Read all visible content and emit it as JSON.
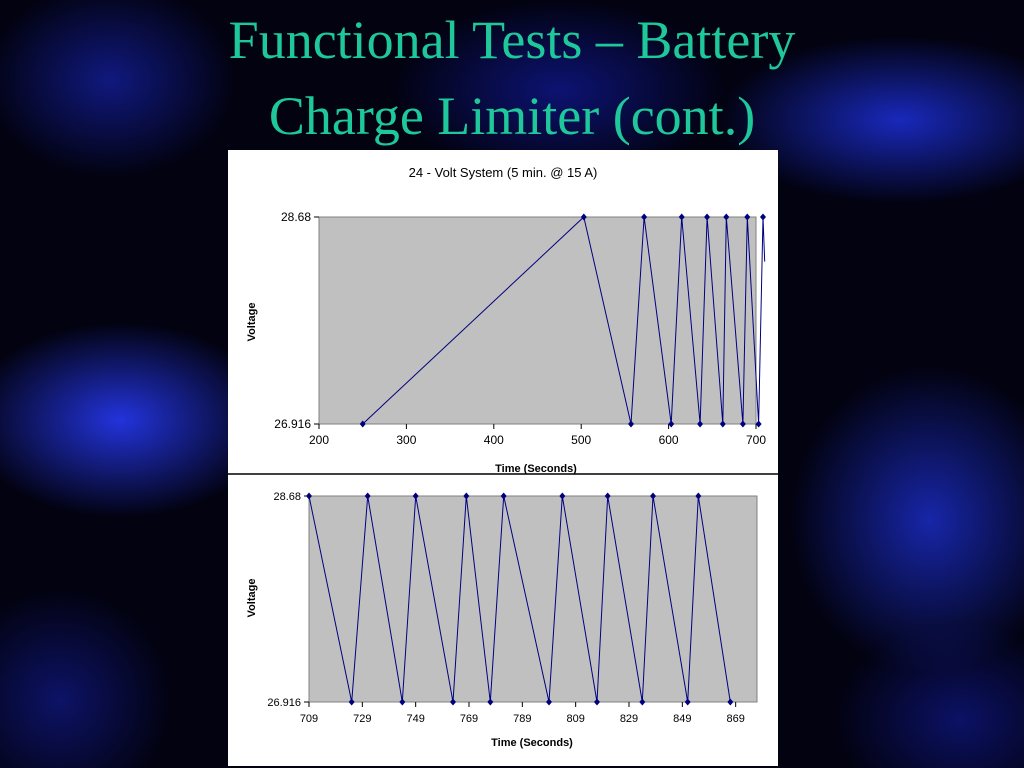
{
  "slide": {
    "title_line1": "Functional Tests – Battery",
    "title_line2": "Charge Limiter (cont.)",
    "title_color": "#1fc89a"
  },
  "chart_data": [
    {
      "type": "line",
      "title": "24 - Volt System (5 min. @ 15 A)",
      "xlabel": "Time (Seconds)",
      "ylabel": "Voltage",
      "xlim": [
        200,
        700
      ],
      "ylim": [
        26.916,
        28.68
      ],
      "xticks": [
        200,
        300,
        400,
        500,
        600,
        700
      ],
      "yticks": [
        26.916,
        28.68
      ],
      "ytick_labels": [
        "26.916",
        "28.68"
      ],
      "plot_background": "#c0c0c0",
      "line_color": "#00007f",
      "marker": "diamond",
      "series": [
        {
          "x": [
            250,
            503,
            557,
            572,
            603,
            615,
            636,
            644,
            662,
            666,
            685,
            690,
            703,
            708,
            710
          ],
          "y": [
            26.916,
            28.68,
            26.916,
            28.68,
            26.916,
            28.68,
            26.916,
            28.68,
            26.916,
            28.68,
            26.916,
            28.68,
            26.916,
            28.68,
            28.3
          ]
        }
      ]
    },
    {
      "type": "line",
      "title": "",
      "xlabel": "Time (Seconds)",
      "ylabel": "Voltage",
      "xlim": [
        709,
        877
      ],
      "ylim": [
        26.916,
        28.68
      ],
      "xticks": [
        709,
        729,
        749,
        769,
        789,
        809,
        829,
        849,
        869
      ],
      "yticks": [
        26.916,
        28.68
      ],
      "ytick_labels": [
        "26.916",
        "28.68"
      ],
      "plot_background": "#c0c0c0",
      "line_color": "#00007f",
      "marker": "diamond",
      "series": [
        {
          "x": [
            709,
            725,
            731,
            744,
            749,
            763,
            768,
            777,
            782,
            799,
            804,
            817,
            821,
            834,
            838,
            851,
            855,
            867
          ],
          "y": [
            28.68,
            26.916,
            28.68,
            26.916,
            28.68,
            26.916,
            28.68,
            26.916,
            28.68,
            26.916,
            28.68,
            26.916,
            28.68,
            26.916,
            28.68,
            26.916,
            28.68,
            26.916
          ]
        }
      ]
    }
  ]
}
